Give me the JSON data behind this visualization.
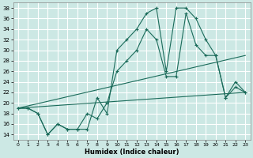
{
  "xlabel": "Humidex (Indice chaleur)",
  "ylabel": "",
  "bg_color": "#cce8e4",
  "grid_color": "#ffffff",
  "line_color": "#1a6b5a",
  "xlim": [
    -0.5,
    23.5
  ],
  "ylim": [
    13,
    39
  ],
  "yticks": [
    14,
    16,
    18,
    20,
    22,
    24,
    26,
    28,
    30,
    32,
    34,
    36,
    38
  ],
  "xticks": [
    0,
    1,
    2,
    3,
    4,
    5,
    6,
    7,
    8,
    9,
    10,
    11,
    12,
    13,
    14,
    15,
    16,
    17,
    18,
    19,
    20,
    21,
    22,
    23
  ],
  "line1_x": [
    0,
    1,
    2,
    3,
    4,
    5,
    6,
    7,
    8,
    9,
    10,
    11,
    12,
    13,
    14,
    15,
    16,
    17,
    18,
    19,
    20,
    21,
    22,
    23
  ],
  "line1_y": [
    19,
    19,
    18,
    14,
    16,
    15,
    15,
    15,
    21,
    18,
    30,
    32,
    34,
    37,
    38,
    26,
    38,
    38,
    36,
    32,
    29,
    21,
    24,
    22
  ],
  "line2_x": [
    0,
    1,
    2,
    3,
    4,
    5,
    6,
    7,
    8,
    9,
    10,
    11,
    12,
    13,
    14,
    15,
    16,
    17,
    18,
    19,
    20,
    21,
    22,
    23
  ],
  "line2_y": [
    19,
    19,
    18,
    14,
    16,
    15,
    15,
    18,
    17,
    20,
    26,
    28,
    30,
    34,
    32,
    25,
    25,
    37,
    31,
    29,
    29,
    21,
    23,
    22
  ],
  "trend1_x": [
    0,
    23
  ],
  "trend1_y": [
    19,
    22
  ],
  "trend2_x": [
    0,
    23
  ],
  "trend2_y": [
    19,
    29
  ]
}
